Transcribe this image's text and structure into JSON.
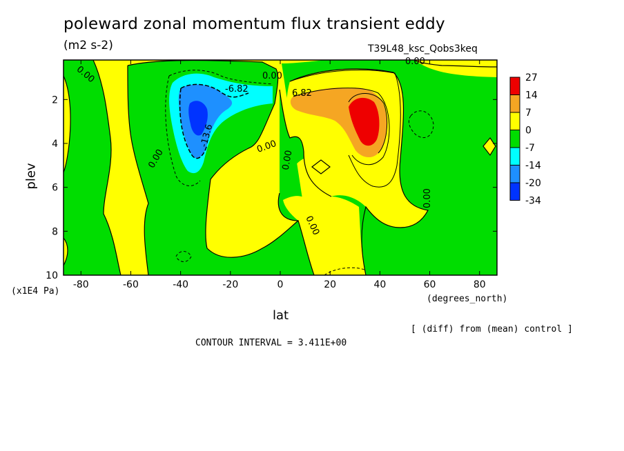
{
  "chart_data": {
    "type": "heatmap",
    "title": "poleward zonal momentum flux transient eddy",
    "units": "(m2 s-2)",
    "run_label": "T39L48_ksc_Qobs3keq",
    "xlabel": "lat",
    "xunits": "(degrees_north)",
    "ylabel": "plev",
    "yunits": "(x1E4 Pa)",
    "x_ticks": [
      "-80",
      "-60",
      "-40",
      "-20",
      "0",
      "20",
      "40",
      "60",
      "80"
    ],
    "x_tick_values": [
      -80,
      -60,
      -40,
      -20,
      0,
      20,
      40,
      60,
      80
    ],
    "y_ticks": [
      "2",
      "4",
      "6",
      "8",
      "10"
    ],
    "y_tick_values": [
      2,
      4,
      6,
      8,
      10
    ],
    "xlim": [
      -87,
      87
    ],
    "ylim": [
      0.2,
      10
    ],
    "colorbar": {
      "labels": [
        "27",
        "14",
        "7",
        "0",
        "-7",
        "-14",
        "-20",
        "-34"
      ],
      "colors": [
        "#ee0000",
        "#f5a623",
        "#ffff00",
        "#00dd00",
        "#00ffff",
        "#1e90ff",
        "#0033ff"
      ]
    },
    "contour_labels": [
      "0.00",
      "-6.82",
      "-13.6",
      "6.82"
    ],
    "note": "[ (diff) from (mean) control ]",
    "contour_interval_text": "CONTOUR INTERVAL = 3.411E+00",
    "features": [
      {
        "name": "southern negative maximum",
        "lat": -34,
        "plev": 2.8,
        "min_value": -34
      },
      {
        "name": "northern positive maximum",
        "lat": 35,
        "plev": 2.8,
        "max_value": 27
      }
    ]
  }
}
